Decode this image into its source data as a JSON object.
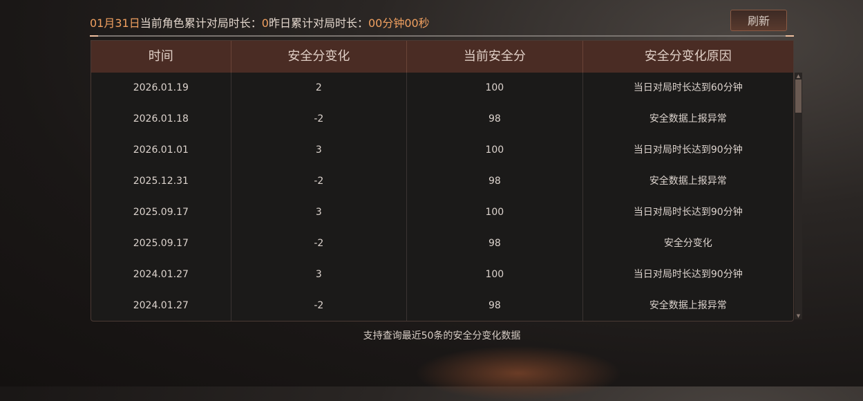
{
  "header": {
    "date": "01月31日",
    "label1": "当前角色累计对局时长：",
    "value1": "0",
    "label2": "昨日累计对局时长：",
    "value2": "00分钟00秒"
  },
  "refresh_label": "刷新",
  "table": {
    "columns": [
      "时间",
      "安全分变化",
      "当前安全分",
      "安全分变化原因"
    ],
    "rows": [
      [
        "2026.01.19",
        "2",
        "100",
        "当日对局时长达到60分钟"
      ],
      [
        "2026.01.18",
        "-2",
        "98",
        "安全数据上报异常"
      ],
      [
        "2026.01.01",
        "3",
        "100",
        "当日对局时长达到90分钟"
      ],
      [
        "2025.12.31",
        "-2",
        "98",
        "安全数据上报异常"
      ],
      [
        "2025.09.17",
        "3",
        "100",
        "当日对局时长达到90分钟"
      ],
      [
        "2025.09.17",
        "-2",
        "98",
        "安全分变化"
      ],
      [
        "2024.01.27",
        "3",
        "100",
        "当日对局时长达到90分钟"
      ],
      [
        "2024.01.27",
        "-2",
        "98",
        "安全数据上报异常"
      ]
    ]
  },
  "footer": "支持查询最近50条的安全分变化数据",
  "colors": {
    "accent": "#f0a060",
    "header_bg": "#4a2c24"
  }
}
